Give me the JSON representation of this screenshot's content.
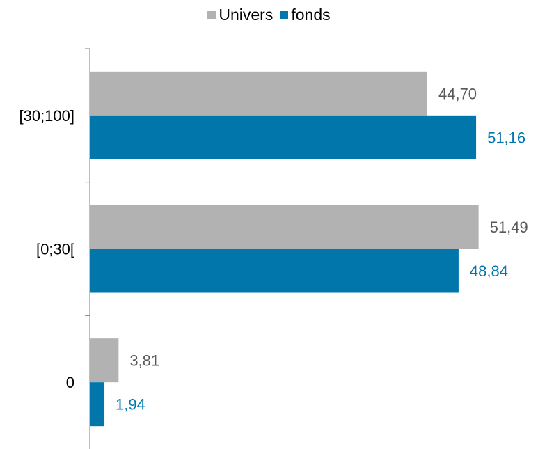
{
  "colors": {
    "univers": "#b2b2b2",
    "fonds": "#0076aa",
    "univers_label": "#595959",
    "fonds_label": "#0076aa",
    "axis": "#7f7f7f"
  },
  "legend": [
    {
      "name": "Univers",
      "color": "#b2b2b2"
    },
    {
      "name": "fonds",
      "color": "#0076aa"
    }
  ],
  "chart_data": {
    "type": "bar",
    "orientation": "horizontal",
    "categories": [
      "[30;100]",
      "[0;30[",
      "0"
    ],
    "series": [
      {
        "name": "Univers",
        "values": [
          44.7,
          51.49,
          3.81
        ],
        "labels": [
          "44,70",
          "51,49",
          "3,81"
        ]
      },
      {
        "name": "fonds",
        "values": [
          51.16,
          48.84,
          1.94
        ],
        "labels": [
          "51,16",
          "48,84",
          "1,94"
        ]
      }
    ],
    "title": "",
    "xlabel": "",
    "ylabel": "",
    "xlim": [
      0,
      52
    ],
    "grid": false,
    "legend_position": "top-center"
  }
}
